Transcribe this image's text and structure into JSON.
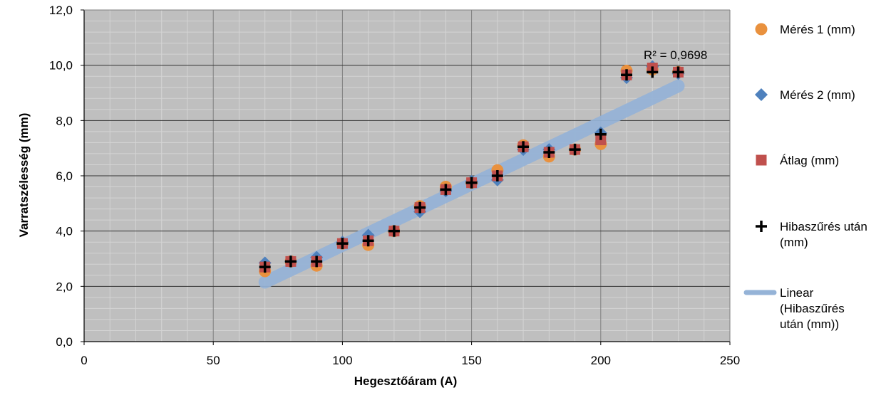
{
  "chart_data": {
    "type": "scatter",
    "xlabel": "Hegesztőáram (A)",
    "ylabel": "Varratszélesség (mm)",
    "xlim": [
      0,
      250
    ],
    "ylim": [
      0,
      12
    ],
    "x_ticks": [
      "0",
      "50",
      "100",
      "150",
      "200",
      "250"
    ],
    "y_ticks": [
      "0,0",
      "2,0",
      "4,0",
      "6,0",
      "8,0",
      "10,0",
      "12,0"
    ],
    "grid": true,
    "legend_position": "right",
    "x": [
      70,
      80,
      90,
      100,
      110,
      120,
      130,
      140,
      150,
      160,
      170,
      180,
      190,
      200,
      210,
      220,
      230
    ],
    "series": [
      {
        "name": "Mérés 1 (mm)",
        "marker": "circle",
        "color": "#E9913E",
        "values": [
          2.55,
          2.9,
          2.75,
          3.55,
          3.5,
          4.0,
          4.9,
          5.6,
          5.75,
          6.2,
          7.1,
          6.7,
          6.95,
          7.15,
          9.8,
          9.85,
          9.75
        ]
      },
      {
        "name": "Mérés 2 (mm)",
        "marker": "diamond",
        "color": "#4F81BD",
        "values": [
          2.85,
          2.9,
          3.05,
          3.6,
          3.85,
          4.0,
          4.7,
          5.45,
          5.8,
          5.85,
          6.95,
          6.95,
          6.95,
          7.55,
          9.55,
          9.95,
          9.7
        ]
      },
      {
        "name": "Átlag (mm)",
        "marker": "square",
        "color": "#C0504D",
        "values": [
          2.7,
          2.9,
          2.9,
          3.55,
          3.65,
          4.0,
          4.85,
          5.5,
          5.75,
          6.0,
          7.05,
          6.85,
          6.95,
          7.3,
          9.65,
          9.9,
          9.75
        ]
      },
      {
        "name": "Hibaszűrés után (mm)",
        "marker": "plus",
        "color": "#000000",
        "values": [
          2.7,
          2.9,
          2.9,
          3.55,
          3.65,
          4.0,
          4.85,
          5.5,
          5.75,
          6.0,
          7.05,
          6.85,
          6.95,
          7.5,
          9.65,
          9.75,
          9.75
        ]
      }
    ],
    "trendline": {
      "name": "Linear (Hibaszűrés után (mm))",
      "color": "#95B3D7",
      "x": [
        70,
        230
      ],
      "y": [
        2.15,
        9.25
      ],
      "r2_label": "R² = 0,9698"
    },
    "legend": [
      {
        "label": "Mérés 1 (mm)",
        "lines": [
          "Mérés 1 (mm)"
        ]
      },
      {
        "label": "Mérés 2 (mm)",
        "lines": [
          "Mérés 2 (mm)"
        ]
      },
      {
        "label": "Átlag (mm)",
        "lines": [
          "Átlag (mm)"
        ]
      },
      {
        "label": "Hibaszűrés után (mm)",
        "lines": [
          "Hibaszűrés után",
          "(mm)"
        ]
      },
      {
        "label": "Linear (Hibaszűrés után (mm))",
        "lines": [
          "Linear",
          "(Hibaszűrés",
          "után (mm))"
        ]
      }
    ],
    "colors": {
      "plot_background": "#BFBFBF",
      "major_grid": "#7F7F7F",
      "minor_grid": "#D4D4D4",
      "chart_background": "#FFFFFF"
    }
  }
}
